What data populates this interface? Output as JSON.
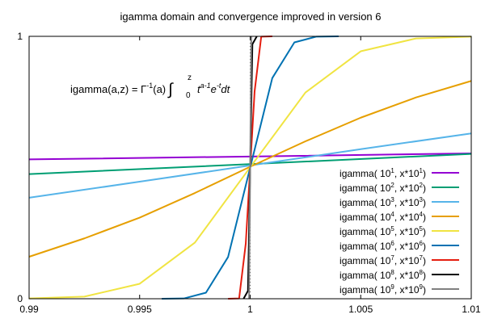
{
  "chart_data": {
    "type": "line",
    "title": "igamma domain and convergence improved in version 6",
    "formula": {
      "prefix": "igamma(a,z) = Γ",
      "gamma_exp": "-1",
      "after_gamma": "(a)",
      "integral_sign": "∫",
      "upper_limit": "z",
      "lower_limit": "0",
      "base_t": "t",
      "t_exp": "a-1",
      "base_e": "e",
      "e_exp": "-t",
      "dt": "dt"
    },
    "xlim": [
      0.99,
      1.01
    ],
    "ylim": [
      0,
      1
    ],
    "x_ticks": [
      {
        "value": 0.99,
        "label": "0.99"
      },
      {
        "value": 0.995,
        "label": "0.995"
      },
      {
        "value": 1.0,
        "label": "1"
      },
      {
        "value": 1.005,
        "label": "1.005"
      },
      {
        "value": 1.01,
        "label": "1.01"
      }
    ],
    "y_ticks": [
      {
        "value": 0,
        "label": "0"
      },
      {
        "value": 1,
        "label": "1"
      }
    ],
    "grid": "dotted lines at y=0, y=1 and x=1",
    "legend_position": "bottom-right",
    "series": [
      {
        "legend": {
          "pre": "igamma( 10",
          "e1": "1",
          "mid": ", x*10",
          "e2": "1",
          "post": ")"
        },
        "color": "#9400d3",
        "x": [
          0.99,
          1.0,
          1.01
        ],
        "y": [
          0.531,
          0.542,
          0.554
        ]
      },
      {
        "legend": {
          "pre": "igamma( 10",
          "e1": "2",
          "mid": ", x*10",
          "e2": "2",
          "post": ")"
        },
        "color": "#009e73",
        "x": [
          0.99,
          1.0,
          1.01
        ],
        "y": [
          0.475,
          0.513,
          0.552
        ]
      },
      {
        "legend": {
          "pre": "igamma( 10",
          "e1": "3",
          "mid": ", x*10",
          "e2": "3",
          "post": ")"
        },
        "color": "#56b4e9",
        "x": [
          0.99,
          0.995,
          1.0,
          1.005,
          1.01
        ],
        "y": [
          0.385,
          0.446,
          0.508,
          0.57,
          0.63
        ]
      },
      {
        "legend": {
          "pre": "igamma( 10",
          "e1": "4",
          "mid": ", x*10",
          "e2": "4",
          "post": ")"
        },
        "color": "#e69f00",
        "x": [
          0.99,
          0.9925,
          0.995,
          0.9975,
          1.0,
          1.0025,
          1.005,
          1.0075,
          1.01
        ],
        "y": [
          0.16,
          0.23,
          0.309,
          0.403,
          0.503,
          0.6,
          0.69,
          0.767,
          0.83
        ]
      },
      {
        "legend": {
          "pre": "igamma( 10",
          "e1": "5",
          "mid": ", x*10",
          "e2": "5",
          "post": ")"
        },
        "color": "#f0e442",
        "x": [
          0.99,
          0.9925,
          0.995,
          0.9975,
          1.0,
          1.0025,
          1.005,
          1.0075,
          1.01
        ],
        "y": [
          0.001,
          0.008,
          0.057,
          0.214,
          0.501,
          0.786,
          0.943,
          0.992,
          0.999
        ]
      },
      {
        "legend": {
          "pre": "igamma( 10",
          "e1": "6",
          "mid": ", x*10",
          "e2": "6",
          "post": ")"
        },
        "color": "#0072b2",
        "x": [
          0.996,
          0.997,
          0.998,
          0.999,
          1.0,
          1.001,
          1.002,
          1.003,
          1.004
        ],
        "y": [
          0.0,
          0.001,
          0.023,
          0.159,
          0.5,
          0.841,
          0.977,
          0.999,
          1.0
        ]
      },
      {
        "legend": {
          "pre": "igamma( 10",
          "e1": "7",
          "mid": ", x*10",
          "e2": "7",
          "post": ")"
        },
        "color": "#e51e10",
        "x": [
          0.999,
          0.9995,
          0.9998,
          1.0,
          1.0002,
          1.0005,
          1.001
        ],
        "y": [
          0.0,
          0.001,
          0.21,
          0.5,
          0.79,
          0.999,
          1.0
        ]
      },
      {
        "legend": {
          "pre": "igamma( 10",
          "e1": "8",
          "mid": ", x*10",
          "e2": "8",
          "post": ")"
        },
        "color": "#000000",
        "x": [
          0.9997,
          0.9999,
          1.0,
          1.0001,
          1.0003
        ],
        "y": [
          0.0,
          0.03,
          0.5,
          0.97,
          1.0
        ]
      },
      {
        "legend": {
          "pre": "igamma( 10",
          "e1": "9",
          "mid": ", x*10",
          "e2": "9",
          "post": ")"
        },
        "color": "#808080",
        "x": [
          0.99995,
          1.0,
          1.00005
        ],
        "y": [
          0.0,
          0.5,
          1.0
        ]
      }
    ]
  }
}
